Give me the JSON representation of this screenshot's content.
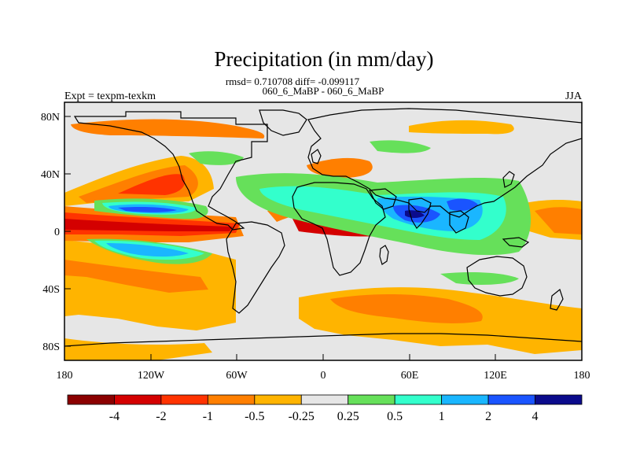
{
  "title": "Precipitation (in mm/day)",
  "stats_line": "rmsd= 0.710708 diff= -0.099117",
  "comparison": "060_6_MaBP - 060_6_MaBP",
  "experiment": "Expt = texpm-texkm",
  "season": "JJA",
  "lat_ticks": [
    "80N",
    "40N",
    "0",
    "40S",
    "80S"
  ],
  "lon_ticks": [
    "180",
    "120W",
    "60W",
    "0",
    "60E",
    "120E",
    "180"
  ],
  "colorbar": {
    "labels": [
      "-4",
      "-2",
      "-1",
      "-0.5",
      "-0.25",
      "0.25",
      "0.5",
      "1",
      "2",
      "4"
    ],
    "colors": [
      "#8b0000",
      "#d40000",
      "#ff3300",
      "#ff7f00",
      "#ffb400",
      "#e6e6e6",
      "#66e05a",
      "#33ffcc",
      "#1ab6ff",
      "#1a54ff",
      "#0b0b8c"
    ]
  },
  "palette": {
    "background": "#e6e6e6",
    "dark_red": "#8b0000",
    "red": "#d40000",
    "red_orange": "#ff3300",
    "orange": "#ff7f00",
    "yellow_orange": "#ffb400",
    "green": "#66e05a",
    "cyan": "#33ffcc",
    "sky": "#1ab6ff",
    "blue": "#1a54ff",
    "navy": "#0b0b8c"
  }
}
